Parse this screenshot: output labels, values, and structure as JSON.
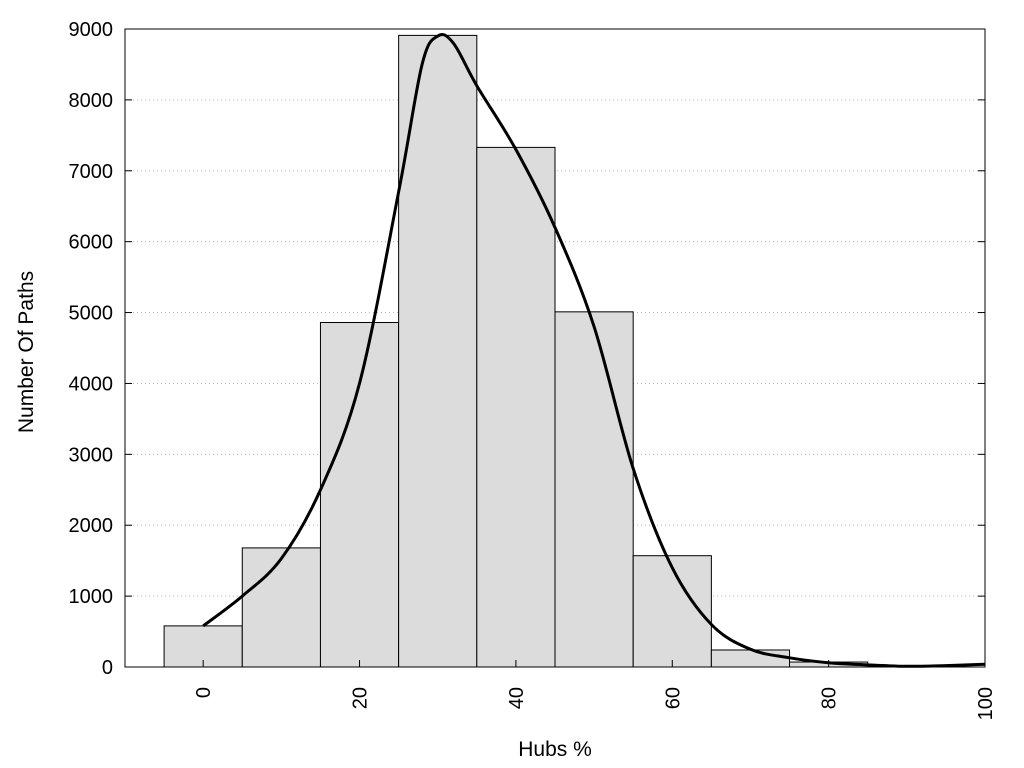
{
  "chart_data": {
    "type": "bar",
    "title": "",
    "xlabel": "Hubs %",
    "ylabel": "Number Of Paths",
    "xlim": [
      -10,
      100
    ],
    "ylim": [
      0,
      9000
    ],
    "x_ticks": [
      0,
      20,
      40,
      60,
      80,
      100
    ],
    "y_ticks": [
      0,
      1000,
      2000,
      3000,
      4000,
      5000,
      6000,
      7000,
      8000,
      9000
    ],
    "grid": "horizontal-dotted",
    "bin_width": 10,
    "series": [
      {
        "type": "bar",
        "x": [
          0,
          10,
          20,
          30,
          40,
          50,
          60,
          70,
          80
        ],
        "values": [
          580,
          1680,
          4860,
          8910,
          7330,
          5010,
          1570,
          240,
          70
        ],
        "color": "#dcdcdc"
      },
      {
        "type": "line",
        "x": [
          0,
          5,
          10,
          15,
          20,
          25,
          28,
          30,
          32,
          35,
          40,
          45,
          50,
          55,
          60,
          65,
          70,
          75,
          80,
          85,
          90,
          95,
          100
        ],
        "values": [
          580,
          1000,
          1530,
          2500,
          4000,
          6700,
          8500,
          8900,
          8800,
          8200,
          7300,
          6200,
          4800,
          2800,
          1400,
          600,
          250,
          130,
          60,
          30,
          10,
          20,
          40
        ],
        "color": "#000000"
      }
    ],
    "legend": "none"
  }
}
